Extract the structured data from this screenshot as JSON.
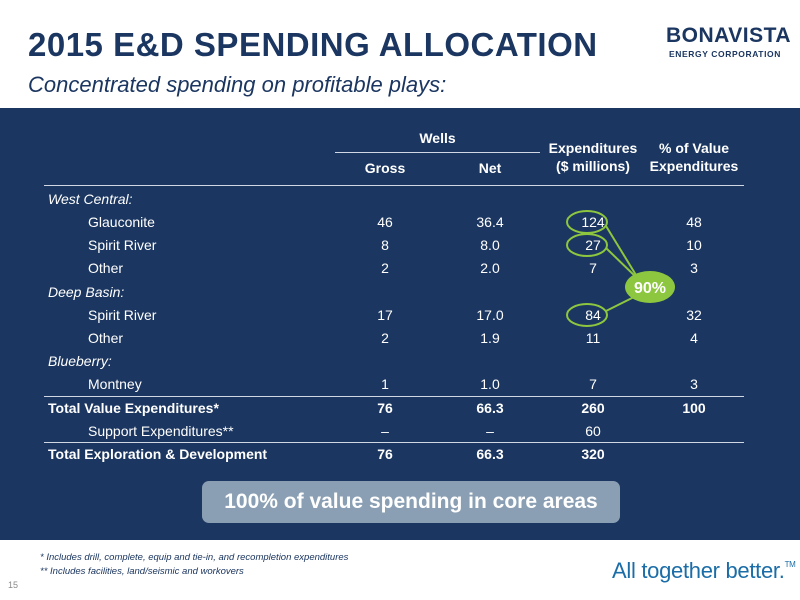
{
  "header": {
    "title": "2015 E&D SPENDING ALLOCATION",
    "subtitle": "Concentrated spending on profitable plays:",
    "logo_word": "BONAVISTA",
    "logo_sub": "ENERGY CORPORATION"
  },
  "table": {
    "group_header": "Wells",
    "col_gross": "Gross",
    "col_net": "Net",
    "col_exp_line1": "Expenditures",
    "col_exp_line2": "($ millions)",
    "col_pct_line1": "% of Value",
    "col_pct_line2": "Expenditures",
    "rows": [
      {
        "label": "West Central:",
        "gross": "",
        "net": "",
        "exp": "",
        "pct": ""
      },
      {
        "label": "Glauconite",
        "gross": "46",
        "net": "36.4",
        "exp": "124",
        "pct": "48"
      },
      {
        "label": "Spirit River",
        "gross": "8",
        "net": "8.0",
        "exp": "27",
        "pct": "10"
      },
      {
        "label": "Other",
        "gross": "2",
        "net": "2.0",
        "exp": "7",
        "pct": "3"
      },
      {
        "label": "Deep Basin:",
        "gross": "",
        "net": "",
        "exp": "",
        "pct": ""
      },
      {
        "label": "Spirit River",
        "gross": "17",
        "net": "17.0",
        "exp": "84",
        "pct": "32"
      },
      {
        "label": "Other",
        "gross": "2",
        "net": "1.9",
        "exp": "11",
        "pct": "4"
      },
      {
        "label": "Blueberry:",
        "gross": "",
        "net": "",
        "exp": "",
        "pct": ""
      },
      {
        "label": "Montney",
        "gross": "1",
        "net": "1.0",
        "exp": "7",
        "pct": "3"
      },
      {
        "label": "Total Value Expenditures*",
        "gross": "76",
        "net": "66.3",
        "exp": "260",
        "pct": "100"
      },
      {
        "label": "Support Expenditures**",
        "gross": "–",
        "net": "–",
        "exp": "60",
        "pct": ""
      },
      {
        "label": "Total Exploration & Development",
        "gross": "76",
        "net": "66.3",
        "exp": "320",
        "pct": ""
      }
    ],
    "callout": "90%"
  },
  "banner": "100% of value spending in core areas",
  "footnotes": {
    "note1": "*   Includes drill, complete, equip and tie-in, and recompletion expenditures",
    "note2": "** Includes facilities, land/seismic and workovers"
  },
  "page_number": "15",
  "tagline": "All together better.",
  "tagline_tm": "TM",
  "colors": {
    "navy": "#1b3660",
    "highlight_green": "#8dc63f",
    "banner_gray": "#8a9fb3",
    "tagline_blue": "#1b6da8"
  }
}
